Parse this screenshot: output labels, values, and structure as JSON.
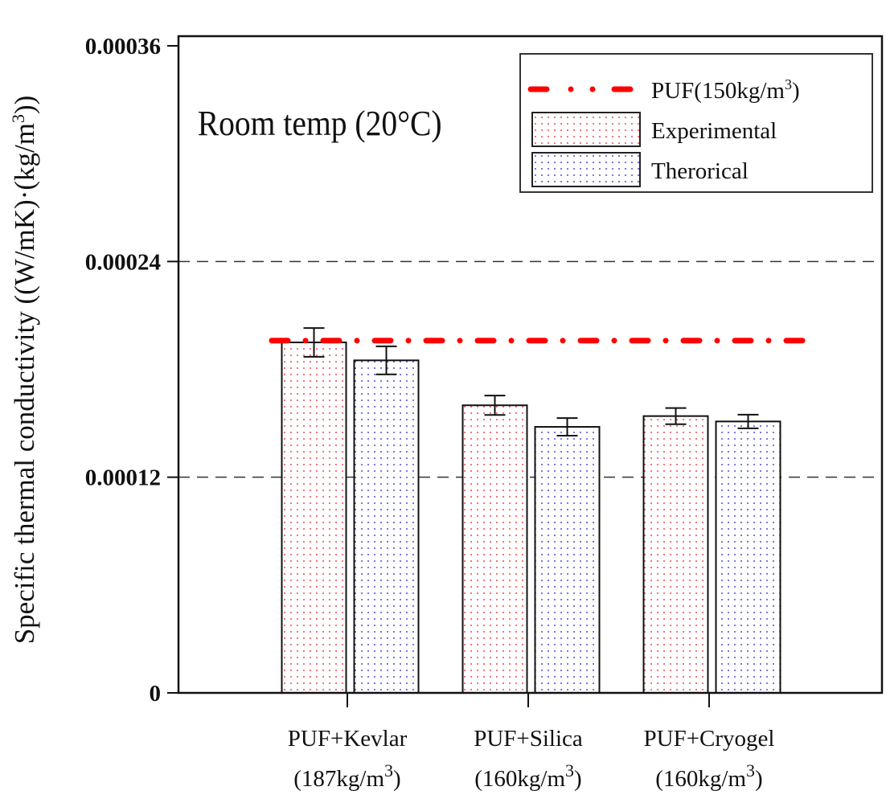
{
  "chart_data": {
    "type": "bar",
    "title": "",
    "annotation": "Room temp (20°C)",
    "annotation_parts": {
      "main": "Room temp (20",
      "sup": "o",
      "end": "C)"
    },
    "ylabel": "Specific thermal conductivity ((W/mK)·(kg/m³))",
    "ylabel_parts": {
      "main": "Specific thermal conductivity ((W/mK)·(kg/m",
      "sup": "3",
      "end": "))"
    },
    "xlabel": "",
    "ylim": [
      0,
      0.00036
    ],
    "yticks": [
      0,
      0.00012,
      0.00024,
      0.00036
    ],
    "ytick_labels": [
      "0",
      "0.00012",
      "0.00024",
      "0.00036"
    ],
    "grid": "dashed horizontal at 0.00012 and 0.00024",
    "categories": [
      {
        "line1": "PUF+Kevlar",
        "line2": "(187kg/m",
        "sup": "3",
        "end": ")"
      },
      {
        "line1": "PUF+Silica",
        "line2": "(160kg/m",
        "sup": "3",
        "end": ")"
      },
      {
        "line1": "PUF+Cryogel",
        "line2": "(160kg/m",
        "sup": "3",
        "end": ")"
      }
    ],
    "series": [
      {
        "name": "Experimental",
        "color": "#e8161b",
        "values": [
          0.000195,
          0.00016,
          0.000154
        ],
        "errors": [
          8e-06,
          5.4e-06,
          4.5e-06
        ]
      },
      {
        "name": "Therorical",
        "color": "#1a1ad6",
        "values": [
          0.000185,
          0.000148,
          0.000151
        ],
        "errors": [
          7.8e-06,
          4.9e-06,
          3.8e-06
        ]
      }
    ],
    "reference_line": {
      "name": "PUF(150kg/m³)",
      "label_main": "PUF(150kg/m",
      "label_sup": "3",
      "label_end": ")",
      "value": 0.000196,
      "color": "#ff0000"
    },
    "legend": "top-right"
  }
}
